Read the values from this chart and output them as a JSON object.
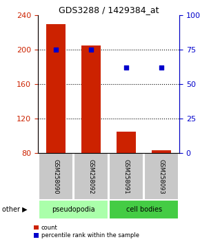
{
  "title": "GDS3288 / 1429384_at",
  "samples": [
    "GSM258090",
    "GSM258092",
    "GSM258091",
    "GSM258093"
  ],
  "bar_values": [
    230,
    205,
    105,
    83
  ],
  "percentile_values": [
    75,
    75,
    62,
    62
  ],
  "bar_color": "#cc2200",
  "percentile_color": "#0000cc",
  "ylim_left": [
    80,
    240
  ],
  "ylim_right": [
    0,
    100
  ],
  "yticks_left": [
    80,
    120,
    160,
    200,
    240
  ],
  "yticks_right": [
    0,
    25,
    50,
    75,
    100
  ],
  "groups": [
    {
      "label": "pseudopodia",
      "color": "#aaffaa"
    },
    {
      "label": "cell bodies",
      "color": "#44cc44"
    }
  ],
  "group_ranges": [
    [
      0,
      1
    ],
    [
      2,
      3
    ]
  ],
  "other_label": "other ▶",
  "legend_count_label": "count",
  "legend_percentile_label": "percentile rank within the sample",
  "bar_width": 0.55,
  "tick_label_fontsize": 8,
  "title_fontsize": 9,
  "xlabel_bg": "#c8c8c8",
  "grid_yticks": [
    120,
    160,
    200
  ]
}
